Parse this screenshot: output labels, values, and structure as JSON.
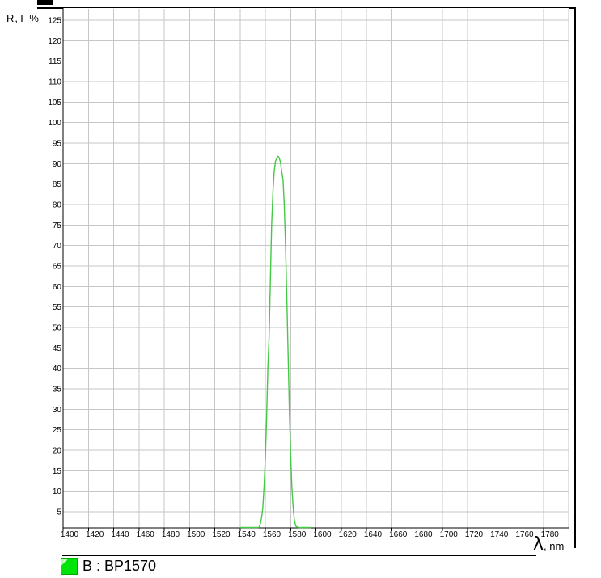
{
  "window": {
    "background": "#ffffff",
    "frame_color": "#000000"
  },
  "axis_titles": {
    "y": "R,T %",
    "x_symbol": "λ",
    "x_suffix": ", nm",
    "x_full": "λ, nm"
  },
  "legend": {
    "label": "B : BP1570",
    "swatch_color": "#00e409",
    "swatch_stripe_color": "#ffffff"
  },
  "chart_data": {
    "type": "line",
    "title": "",
    "ylabel": "R,T %",
    "xlabel": "λ, nm",
    "xlim": [
      1400,
      1800
    ],
    "ylim": [
      1,
      128
    ],
    "grid": true,
    "grid_color": "#c6c6c6",
    "axis_color": "#000000",
    "tick_label_color": "#000000",
    "legend_position": "bottom-left",
    "x_tick_step": 20,
    "y_tick_step": 5,
    "x_ticks": [
      1400,
      1420,
      1440,
      1460,
      1480,
      1500,
      1520,
      1540,
      1560,
      1580,
      1600,
      1620,
      1640,
      1660,
      1680,
      1700,
      1720,
      1740,
      1760,
      1780
    ],
    "y_ticks": [
      5,
      10,
      15,
      20,
      25,
      30,
      35,
      40,
      45,
      50,
      55,
      60,
      65,
      70,
      75,
      80,
      85,
      90,
      95,
      100,
      105,
      110,
      115,
      120,
      125
    ],
    "series": [
      {
        "name": "B : BP1570",
        "color": "#44c944",
        "peak_nm": 1570,
        "peak_percent": 91.8,
        "points": [
          [
            1540,
            0
          ],
          [
            1548,
            0.1
          ],
          [
            1552,
            0.3
          ],
          [
            1554,
            0.7
          ],
          [
            1555,
            1.2
          ],
          [
            1556,
            2
          ],
          [
            1557,
            3.5
          ],
          [
            1558,
            6
          ],
          [
            1559,
            11
          ],
          [
            1560,
            18
          ],
          [
            1561,
            28
          ],
          [
            1562,
            40
          ],
          [
            1563,
            48
          ],
          [
            1564,
            62
          ],
          [
            1565,
            75
          ],
          [
            1566,
            83
          ],
          [
            1567,
            88
          ],
          [
            1568,
            90.5
          ],
          [
            1569,
            91.3
          ],
          [
            1570,
            91.8
          ],
          [
            1571,
            91.4
          ],
          [
            1572,
            90.2
          ],
          [
            1573,
            88
          ],
          [
            1574,
            86
          ],
          [
            1575,
            80
          ],
          [
            1576,
            70
          ],
          [
            1577,
            57
          ],
          [
            1578,
            44
          ],
          [
            1579,
            30
          ],
          [
            1580,
            19
          ],
          [
            1581,
            11
          ],
          [
            1582,
            6
          ],
          [
            1583,
            3
          ],
          [
            1584,
            1.5
          ],
          [
            1586,
            0.6
          ],
          [
            1588,
            0.3
          ],
          [
            1592,
            0.1
          ],
          [
            1596,
            0
          ]
        ]
      }
    ]
  }
}
